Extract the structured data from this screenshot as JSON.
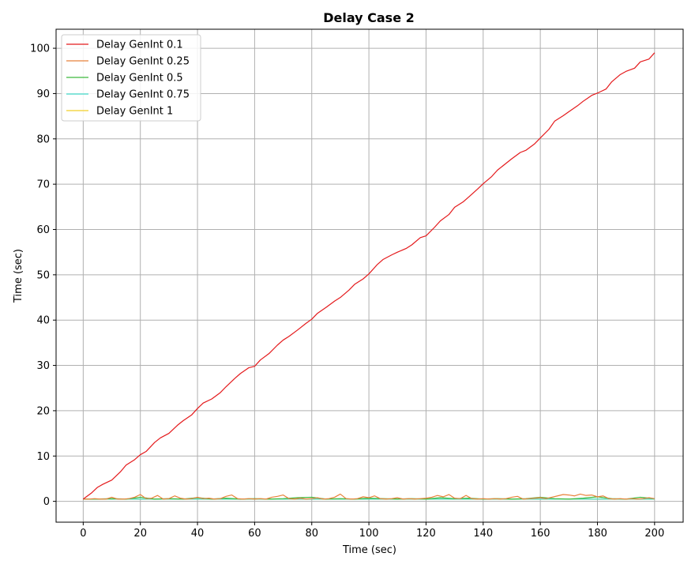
{
  "chart_data": {
    "type": "line",
    "title": "Delay Case 2",
    "xlabel": "Time (sec)",
    "ylabel": "Time (sec)",
    "xlim": [
      -9.5,
      210
    ],
    "ylim": [
      -4.6,
      104.2
    ],
    "xticks": [
      0,
      20,
      40,
      60,
      80,
      100,
      120,
      140,
      160,
      180,
      200
    ],
    "yticks": [
      0,
      10,
      20,
      30,
      40,
      50,
      60,
      70,
      80,
      90,
      100
    ],
    "grid": true,
    "legend_position": "top-left",
    "series": [
      {
        "name": "Delay GenInt 0.1",
        "color": "#e41a1c",
        "x": [
          0,
          3,
          5,
          7,
          10,
          13,
          15,
          18,
          20,
          22,
          25,
          27,
          30,
          33,
          35,
          38,
          40,
          42,
          45,
          48,
          50,
          53,
          55,
          58,
          60,
          62,
          65,
          68,
          70,
          72,
          75,
          78,
          80,
          82,
          85,
          88,
          90,
          93,
          95,
          98,
          100,
          103,
          105,
          108,
          110,
          113,
          115,
          118,
          120,
          123,
          125,
          128,
          130,
          133,
          135,
          138,
          140,
          143,
          145,
          148,
          150,
          153,
          155,
          158,
          160,
          163,
          165,
          168,
          170,
          173,
          175,
          178,
          180,
          183,
          185,
          188,
          190,
          193,
          195,
          198,
          200
        ],
        "y": [
          0.5,
          1.9,
          3.1,
          3.8,
          4.7,
          6.5,
          8.0,
          9.2,
          10.3,
          11.0,
          13.0,
          14.0,
          15.0,
          16.8,
          17.8,
          19.1,
          20.5,
          21.7,
          22.6,
          24.0,
          25.3,
          27.1,
          28.2,
          29.5,
          29.8,
          31.2,
          32.6,
          34.5,
          35.6,
          36.4,
          37.8,
          39.3,
          40.2,
          41.5,
          42.8,
          44.2,
          45.0,
          46.6,
          47.9,
          49.1,
          50.2,
          52.3,
          53.4,
          54.4,
          55.0,
          55.8,
          56.6,
          58.2,
          58.6,
          60.5,
          61.9,
          63.3,
          64.9,
          66.1,
          67.2,
          68.9,
          70.1,
          71.7,
          73.1,
          74.6,
          75.6,
          77.0,
          77.5,
          78.9,
          80.2,
          82.1,
          83.9,
          85.1,
          86.0,
          87.3,
          88.3,
          89.6,
          90.1,
          91.0,
          92.6,
          94.2,
          94.9,
          95.6,
          97.0,
          97.6,
          99.0
        ]
      },
      {
        "name": "Delay GenInt 0.25",
        "color": "#e8823a",
        "x": [
          0,
          2,
          4,
          6,
          8,
          10,
          12,
          14,
          16,
          18,
          20,
          22,
          24,
          26,
          28,
          30,
          32,
          34,
          36,
          38,
          40,
          42,
          44,
          46,
          48,
          50,
          52,
          54,
          56,
          58,
          60,
          62,
          64,
          66,
          68,
          70,
          72,
          74,
          76,
          78,
          80,
          82,
          84,
          86,
          88,
          90,
          92,
          94,
          96,
          98,
          100,
          102,
          104,
          106,
          108,
          110,
          112,
          114,
          116,
          118,
          120,
          122,
          124,
          126,
          128,
          130,
          132,
          134,
          136,
          138,
          140,
          142,
          144,
          146,
          148,
          150,
          152,
          154,
          156,
          158,
          160,
          162,
          164,
          166,
          168,
          170,
          172,
          174,
          176,
          178,
          180,
          182,
          184,
          186,
          188,
          190,
          192,
          194,
          196,
          198,
          200
        ],
        "y": [
          0.5,
          0.5,
          0.6,
          0.5,
          0.5,
          0.9,
          0.5,
          0.5,
          0.6,
          0.9,
          1.5,
          0.6,
          0.7,
          1.3,
          0.5,
          0.6,
          1.2,
          0.7,
          0.5,
          0.6,
          0.9,
          0.6,
          0.7,
          0.5,
          0.6,
          1.1,
          1.4,
          0.6,
          0.5,
          0.6,
          0.5,
          0.6,
          0.5,
          0.9,
          1.1,
          1.4,
          0.6,
          0.5,
          0.7,
          0.5,
          0.6,
          0.8,
          0.5,
          0.6,
          0.9,
          1.6,
          0.6,
          0.5,
          0.6,
          1.0,
          0.8,
          1.2,
          0.6,
          0.5,
          0.6,
          0.8,
          0.5,
          0.6,
          0.5,
          0.6,
          0.7,
          0.9,
          1.3,
          1.0,
          1.5,
          0.7,
          0.6,
          1.3,
          0.6,
          0.5,
          0.6,
          0.5,
          0.6,
          0.5,
          0.6,
          0.9,
          1.1,
          0.5,
          0.6,
          0.7,
          0.8,
          0.6,
          0.9,
          1.2,
          1.5,
          1.4,
          1.2,
          1.6,
          1.3,
          1.4,
          1.0,
          1.2,
          0.6,
          0.5,
          0.6,
          0.5,
          0.6,
          0.5,
          0.6,
          0.8,
          0.6
        ]
      },
      {
        "name": "Delay GenInt 0.5",
        "color": "#3cb93c",
        "x": [
          0,
          5,
          10,
          15,
          20,
          25,
          30,
          35,
          40,
          45,
          50,
          55,
          60,
          65,
          70,
          75,
          80,
          85,
          90,
          95,
          100,
          105,
          110,
          115,
          120,
          125,
          130,
          135,
          140,
          145,
          150,
          155,
          160,
          165,
          170,
          175,
          180,
          185,
          190,
          195,
          200
        ],
        "y": [
          0.5,
          0.5,
          0.6,
          0.5,
          0.9,
          0.5,
          0.6,
          0.5,
          0.8,
          0.5,
          0.7,
          0.5,
          0.6,
          0.5,
          0.6,
          0.8,
          0.9,
          0.5,
          0.6,
          0.5,
          0.7,
          0.6,
          0.5,
          0.6,
          0.5,
          0.8,
          0.6,
          0.7,
          0.5,
          0.6,
          0.5,
          0.6,
          0.9,
          0.6,
          0.5,
          0.7,
          1.0,
          0.6,
          0.5,
          0.9,
          0.6
        ]
      },
      {
        "name": "Delay GenInt 0.75",
        "color": "#40d8c8",
        "x": [
          0,
          50,
          100,
          150,
          200
        ],
        "y": [
          0.5,
          0.5,
          0.5,
          0.5,
          0.5
        ]
      },
      {
        "name": "Delay GenInt 1",
        "color": "#f2cf28",
        "x": [
          0,
          50,
          100,
          150,
          200
        ],
        "y": [
          0.5,
          0.5,
          0.5,
          0.5,
          0.5
        ]
      }
    ]
  }
}
